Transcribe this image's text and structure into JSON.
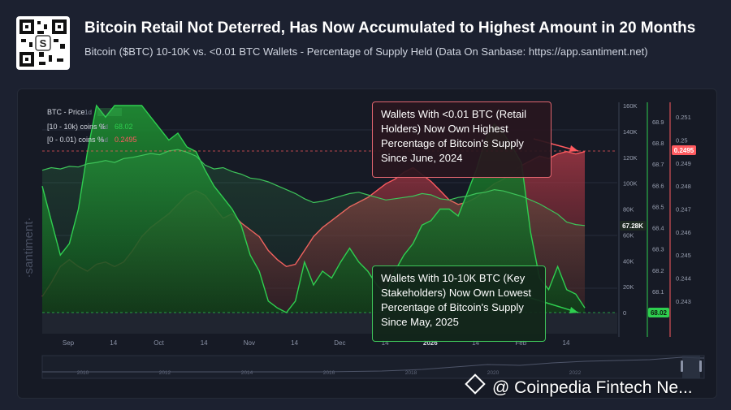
{
  "header": {
    "title": "Bitcoin Retail Not Deterred, Has Now Accumulated to Highest Amount in 20 Months",
    "subtitle": "Bitcoin ($BTC) 10-10K vs. <0.01 BTC Wallets - Percentage of Supply Held (Data On Sanbase: https://app.santiment.net)"
  },
  "legend": {
    "btc": {
      "label": "BTC - Price",
      "interval": "1d",
      "value": "",
      "color": "#3ec45a"
    },
    "whales": {
      "label": "[10 - 10k) coins %",
      "interval": "1d",
      "value": "68.02",
      "color": "#2ecf4f"
    },
    "retail": {
      "label": "[0 - 0.01) coins %",
      "interval": "1d",
      "value": "0.2495",
      "color": "#ff5a5f"
    }
  },
  "brand": "·santiment·",
  "callouts": {
    "retail": "Wallets With <0.01 BTC (Retail Holders) Now Own Highest Percentage of Bitcoin's Supply Since June, 2024",
    "whales": "Wallets With 10-10K BTC (Key Stakeholders) Now Own Lowest Percentage of Bitcoin's Supply Since May, 2025"
  },
  "badges": {
    "btc": "67.28K",
    "whales": "68.02",
    "retail": "0.2495"
  },
  "watermark": "@ Coinpedia Fintech Ne...",
  "chart_data": {
    "type": "area",
    "x_tick_labels": [
      "Sep",
      "14",
      "Oct",
      "14",
      "Nov",
      "14",
      "Dec",
      "14",
      "2026",
      "14",
      "Feb",
      "14"
    ],
    "y_axes": {
      "btc_price": {
        "ticks": [
          "160K",
          "140K",
          "120K",
          "100K",
          "80K",
          "60K",
          "40K",
          "20K",
          "0"
        ],
        "range": [
          0,
          160000
        ]
      },
      "whales_pct": {
        "ticks": [
          "68.9",
          "68.8",
          "68.7",
          "68.6",
          "68.5",
          "68.4",
          "68.3",
          "68.2",
          "68.1",
          "68"
        ],
        "range": [
          68.0,
          68.9
        ]
      },
      "retail_pct": {
        "ticks": [
          "0.251",
          "0.25",
          "0.249",
          "0.248",
          "0.247",
          "0.246",
          "0.245",
          "0.244",
          "0.243"
        ],
        "range": [
          0.2425,
          0.2515
        ]
      }
    },
    "navigator_ticks": [
      "2010",
      "2012",
      "2014",
      "2016",
      "2018",
      "2020",
      "2022"
    ],
    "series": [
      {
        "name": "BTC - Price",
        "axis": "btc_price",
        "color": "#3ec45a",
        "values": [
          110000,
          112000,
          111000,
          113000,
          112500,
          115000,
          116000,
          117500,
          116000,
          119000,
          120000,
          121500,
          123000,
          122000,
          125000,
          126000,
          124000,
          121000,
          114000,
          111000,
          112000,
          109000,
          107000,
          104000,
          103000,
          101000,
          98000,
          95000,
          92000,
          88000,
          85000,
          86000,
          88000,
          90000,
          92000,
          93000,
          91000,
          89000,
          87000,
          88000,
          89000,
          90000,
          92000,
          91000,
          88000,
          87000,
          89000,
          90000,
          92000,
          93000,
          95000,
          94000,
          92000,
          90000,
          87000,
          84000,
          80000,
          76000,
          70000,
          68000,
          67280
        ]
      },
      {
        "name": "[10 - 10k) coins %",
        "axis": "whales_pct",
        "color": "#2ecf4f",
        "values": [
          68.55,
          68.4,
          68.25,
          68.3,
          68.45,
          68.7,
          68.9,
          68.85,
          68.95,
          68.92,
          68.9,
          68.95,
          68.85,
          68.8,
          68.75,
          68.78,
          68.72,
          68.7,
          68.62,
          68.55,
          68.5,
          68.45,
          68.38,
          68.25,
          68.18,
          68.05,
          68.02,
          68.0,
          68.05,
          68.22,
          68.12,
          68.18,
          68.15,
          68.22,
          68.28,
          68.22,
          68.18,
          68.12,
          68.08,
          68.18,
          68.25,
          68.3,
          68.38,
          68.4,
          68.45,
          68.45,
          68.42,
          68.52,
          68.62,
          68.75,
          68.82,
          68.78,
          68.72,
          68.65,
          68.35,
          68.15,
          68.1,
          68.2,
          68.1,
          68.08,
          68.02
        ]
      },
      {
        "name": "[0 - 0.01) coins %",
        "axis": "retail_pct",
        "color": "#ff5a5f",
        "values": [
          0.2432,
          0.2438,
          0.2445,
          0.2448,
          0.2445,
          0.2443,
          0.2446,
          0.2447,
          0.2445,
          0.2447,
          0.2452,
          0.2458,
          0.2462,
          0.2465,
          0.2468,
          0.2472,
          0.2476,
          0.2478,
          0.2476,
          0.2471,
          0.2466,
          0.2468,
          0.2464,
          0.2461,
          0.2458,
          0.2452,
          0.2448,
          0.2445,
          0.2446,
          0.2452,
          0.2458,
          0.2462,
          0.2465,
          0.2468,
          0.2471,
          0.2473,
          0.2475,
          0.2478,
          0.2481,
          0.2483,
          0.2486,
          0.2488,
          0.2485,
          0.2482,
          0.2478,
          0.2474,
          0.2472,
          0.2473,
          0.2475,
          0.2478,
          0.2481,
          0.2483,
          0.2486,
          0.2489,
          0.2491,
          0.2493,
          0.2492,
          0.2494,
          0.2495,
          0.2494,
          0.2495
        ]
      }
    ]
  }
}
